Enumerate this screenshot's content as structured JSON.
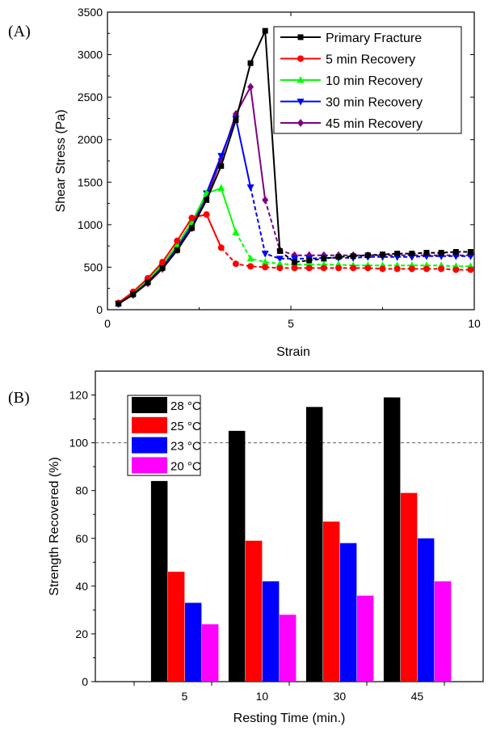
{
  "panels": {
    "a_label": "(A)",
    "b_label": "(B)"
  },
  "chart_data": [
    {
      "type": "line",
      "panel": "A",
      "xlabel": "Strain",
      "ylabel": "Shear Stress (Pa)",
      "xlim": [
        0,
        10
      ],
      "ylim": [
        0,
        3500
      ],
      "xticks": [
        0,
        5,
        10
      ],
      "yticks": [
        0,
        500,
        1000,
        1500,
        2000,
        2500,
        3000,
        3500
      ],
      "legend_position": "top-right",
      "grid": false,
      "x": [
        0.3,
        0.7,
        1.1,
        1.5,
        1.9,
        2.3,
        2.7,
        3.1,
        3.5,
        3.9,
        4.3,
        4.7,
        5.1,
        5.5,
        5.9,
        6.3,
        6.7,
        7.1,
        7.5,
        7.9,
        8.3,
        8.7,
        9.1,
        9.5,
        9.9
      ],
      "series": [
        {
          "name": "Primary Fracture",
          "color": "#000000",
          "marker": "square",
          "values": [
            70,
            180,
            320,
            490,
            700,
            960,
            1290,
            1690,
            2230,
            2900,
            3280,
            690,
            560,
            580,
            600,
            620,
            630,
            640,
            650,
            660,
            660,
            670,
            670,
            680,
            680
          ]
        },
        {
          "name": "5 min Recovery",
          "color": "#ff0000",
          "marker": "circle",
          "values": [
            80,
            210,
            370,
            560,
            810,
            1080,
            1120,
            730,
            540,
            510,
            500,
            490,
            490,
            490,
            490,
            490,
            490,
            490,
            480,
            480,
            480,
            480,
            480,
            470,
            470
          ]
        },
        {
          "name": "10 min Recovery",
          "color": "#00ff00",
          "marker": "triangle-up",
          "values": [
            75,
            200,
            350,
            530,
            760,
            1030,
            1370,
            1430,
            910,
            600,
            560,
            540,
            530,
            530,
            530,
            530,
            520,
            520,
            520,
            520,
            520,
            520,
            520,
            510,
            510
          ]
        },
        {
          "name": "30 min Recovery",
          "color": "#0000ff",
          "marker": "triangle-down",
          "values": [
            72,
            190,
            330,
            510,
            730,
            1000,
            1370,
            1810,
            2250,
            1440,
            660,
            600,
            600,
            600,
            610,
            610,
            610,
            620,
            620,
            620,
            620,
            630,
            630,
            630,
            630
          ]
        },
        {
          "name": "45 min Recovery",
          "color": "#800080",
          "marker": "diamond",
          "values": [
            68,
            175,
            310,
            480,
            700,
            960,
            1320,
            1770,
            2300,
            2620,
            1290,
            700,
            640,
            640,
            640,
            640,
            640,
            640,
            640,
            640,
            640,
            640,
            640,
            640,
            640
          ]
        }
      ]
    },
    {
      "type": "bar",
      "panel": "B",
      "xlabel": "Resting Time (min.)",
      "ylabel": "Strength Recovered (%)",
      "categories": [
        "5",
        "10",
        "30",
        "45"
      ],
      "ylim": [
        0,
        130
      ],
      "yticks": [
        0,
        20,
        40,
        60,
        80,
        100,
        120
      ],
      "reference_line": 100,
      "legend_position": "top-left",
      "grid": false,
      "series": [
        {
          "name": "28 °C",
          "color": "#000000",
          "values": [
            84,
            105,
            115,
            119
          ]
        },
        {
          "name": "25 °C",
          "color": "#ff0000",
          "values": [
            46,
            59,
            67,
            79
          ]
        },
        {
          "name": "23 °C",
          "color": "#0000ff",
          "values": [
            33,
            42,
            58,
            60
          ]
        },
        {
          "name": "20 °C",
          "color": "#ff00ff",
          "values": [
            24,
            28,
            36,
            42
          ]
        }
      ]
    }
  ]
}
